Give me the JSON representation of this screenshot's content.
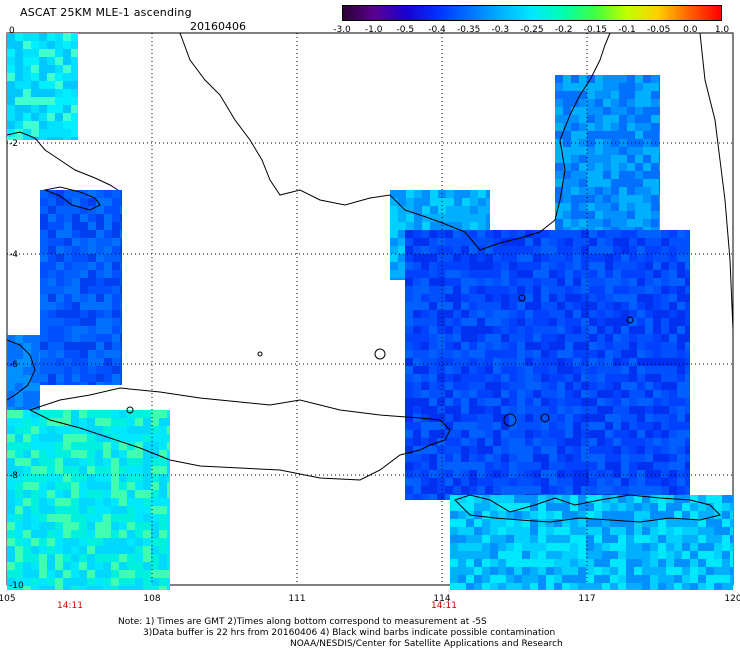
{
  "header": {
    "title": "ASCAT 25KM MLE-1 ascending",
    "date": "20160406"
  },
  "colorbar": {
    "labels": [
      "-3.0",
      "-1.0",
      "-0.5",
      "-0.4",
      "-0.35",
      "-0.3",
      "-0.25",
      "-0.2",
      "-0.15",
      "-0.1",
      "-0.05",
      "0.0",
      "1.0"
    ],
    "colors": [
      "#2a0033",
      "#5a0090",
      "#1a00d0",
      "#0030ff",
      "#0070ff",
      "#00b0ff",
      "#00e8ff",
      "#00ffb0",
      "#40ff40",
      "#c0ff00",
      "#ffd000",
      "#ff6000",
      "#ff0000"
    ]
  },
  "map": {
    "x_ticks": [
      "105",
      "108",
      "111",
      "114",
      "117",
      "120"
    ],
    "y_ticks": [
      "0",
      "-2",
      "-4",
      "-6",
      "-8",
      "-10"
    ],
    "time_labels": [
      "14:11",
      "14:11"
    ],
    "time_color": "#d00000"
  },
  "notes": {
    "line1": "Note: 1) Times are GMT 2)Times along bottom correspond to measurement at -5S",
    "line2": "3)Data buffer is 22 hrs from 20160406 4) Black wind barbs indicate possible contamination",
    "line3": "NOAA/NESDIS/Center for Satellite Applications and Research"
  }
}
